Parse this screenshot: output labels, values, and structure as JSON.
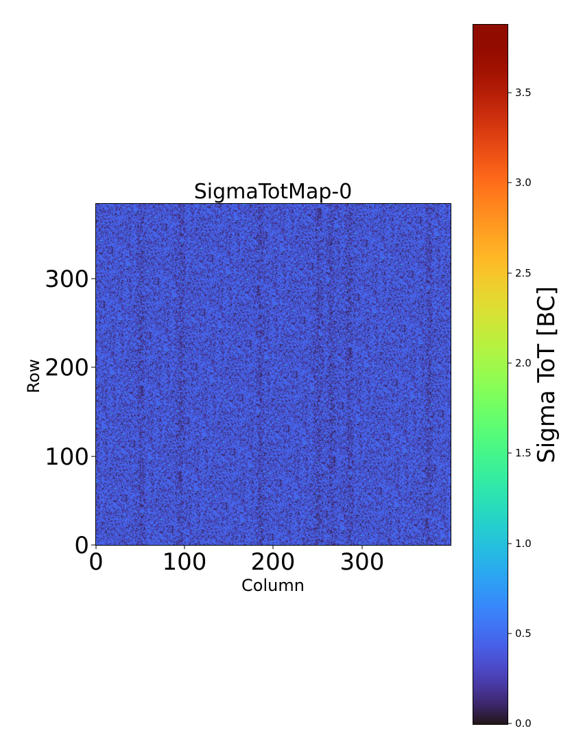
{
  "chart_data": {
    "type": "heatmap",
    "title": "SigmaTotMap-0",
    "xlabel": "Column",
    "ylabel": "Row",
    "xlim": [
      0,
      400
    ],
    "ylim": [
      0,
      384
    ],
    "x_ticks": [
      0,
      100,
      200,
      300
    ],
    "y_ticks": [
      0,
      100,
      200,
      300
    ],
    "x_tick_labels": [
      "0",
      "100",
      "200",
      "300"
    ],
    "y_tick_labels": [
      "0",
      "100",
      "200",
      "300"
    ],
    "colormap": "turbo",
    "colorbar": {
      "label": "Sigma ToT [BC]",
      "range": [
        0.0,
        3.88
      ],
      "ticks": [
        0.0,
        0.5,
        1.0,
        1.5,
        2.0,
        2.5,
        3.0,
        3.5
      ],
      "tick_labels": [
        "0.0",
        "0.5",
        "1.0",
        "1.5",
        "2.0",
        "2.5",
        "3.0",
        "3.5"
      ]
    },
    "value_summary": {
      "typical_range": [
        0.0,
        0.6
      ],
      "dominant_value": 0.45,
      "low_value_columns": [
        50,
        95,
        185,
        250,
        265,
        285,
        375
      ],
      "sparse_outliers_max": 1.2
    }
  }
}
